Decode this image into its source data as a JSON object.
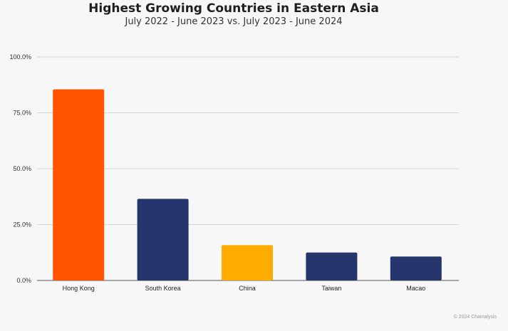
{
  "chart_data": {
    "type": "bar",
    "title": "Highest Growing Countries in Eastern Asia",
    "subtitle": "July 2022 - June 2023 vs. July 2023 - June 2024",
    "categories": [
      "Hong Kong",
      "South Korea",
      "China",
      "Taiwan",
      "Macao"
    ],
    "values": [
      85.5,
      36.5,
      15.8,
      12.5,
      10.7
    ],
    "bar_colors": [
      "#ff5400",
      "#26356b",
      "#ffab00",
      "#26356b",
      "#26356b"
    ],
    "yticks": [
      "0.0%",
      "25.0%",
      "50.0%",
      "75.0%",
      "100.0%"
    ],
    "ylim": [
      0,
      100
    ],
    "grid": true,
    "xlabel": "",
    "ylabel": ""
  },
  "footer": {
    "copyright": "© 2024 Chainalysis"
  }
}
